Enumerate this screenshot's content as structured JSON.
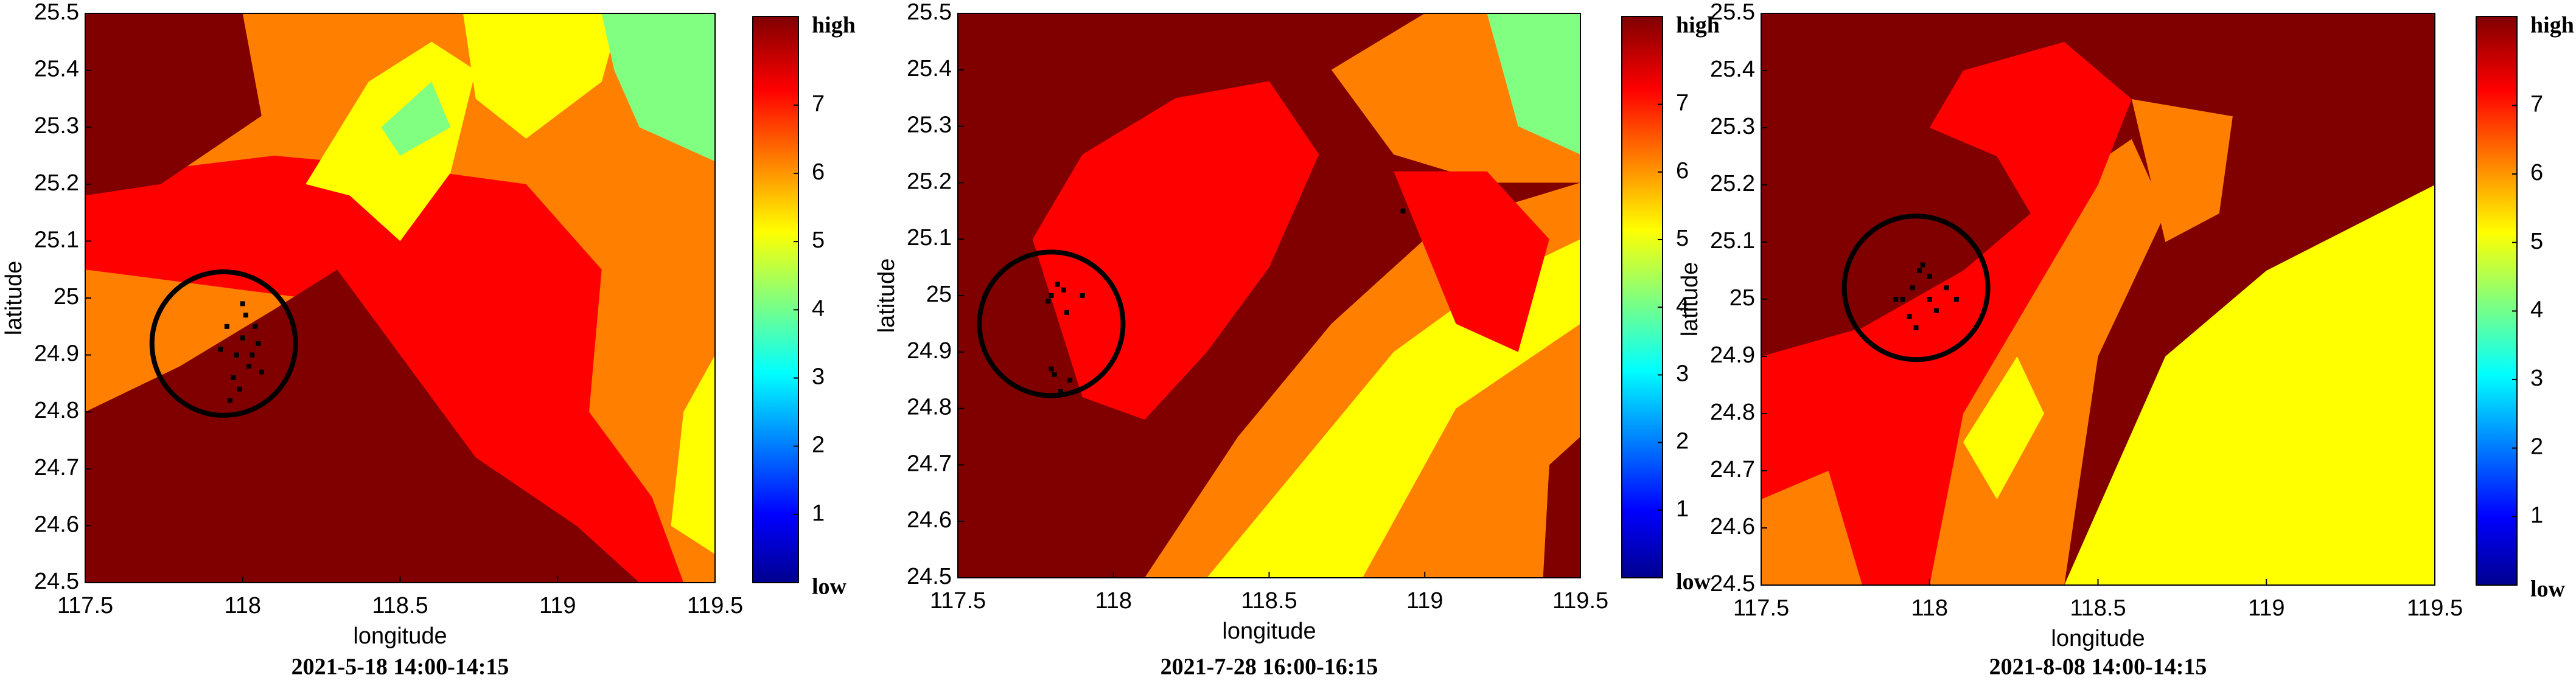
{
  "chart_data": [
    {
      "type": "heatmap",
      "caption": "2021-5-18 14:00-14:15",
      "xlabel": "longitude",
      "ylabel": "latitude",
      "xlim": [
        117.5,
        119.5
      ],
      "ylim": [
        24.5,
        25.5
      ],
      "xticks": [
        117.5,
        118,
        118.5,
        119,
        119.5
      ],
      "yticks": [
        24.5,
        24.6,
        24.7,
        24.8,
        24.9,
        25,
        25.1,
        25.2,
        25.3,
        25.4,
        25.5
      ],
      "colorbar": {
        "lim": [
          0,
          8.3
        ],
        "ticks": [
          1,
          2,
          3,
          4,
          5,
          6,
          7
        ],
        "high_label": "high",
        "low_label": "low"
      },
      "points": {
        "color": "#000000",
        "x": [
          117.95,
          117.98,
          118.0,
          118.02,
          118.05,
          117.97,
          118.01,
          118.04,
          117.99,
          118.03,
          118.06,
          117.93,
          118.0,
          117.96
        ],
        "y": [
          24.95,
          24.9,
          24.93,
          24.88,
          24.92,
          24.86,
          24.97,
          24.95,
          24.84,
          24.9,
          24.87,
          24.91,
          24.99,
          24.82
        ]
      }
    },
    {
      "type": "heatmap",
      "caption": "2021-7-28 16:00-16:15",
      "xlabel": "longitude",
      "ylabel": "latitude",
      "xlim": [
        117.5,
        119.5
      ],
      "ylim": [
        24.5,
        25.5
      ],
      "xticks": [
        117.5,
        118,
        118.5,
        119,
        119.5
      ],
      "yticks": [
        24.5,
        24.6,
        24.7,
        24.8,
        24.9,
        25,
        25.1,
        25.2,
        25.3,
        25.4,
        25.5
      ],
      "colorbar": {
        "lim": [
          0,
          8.3
        ],
        "ticks": [
          1,
          2,
          3,
          4,
          5,
          6,
          7
        ],
        "high_label": "high",
        "low_label": "low"
      },
      "points": {
        "color": "#000000",
        "x": [
          117.8,
          117.82,
          117.84,
          117.79,
          117.9,
          117.85,
          117.81,
          117.83,
          117.86,
          117.8,
          118.93
        ],
        "y": [
          25.0,
          25.02,
          25.01,
          24.99,
          25.0,
          24.97,
          24.86,
          24.83,
          24.85,
          24.87,
          25.15
        ]
      }
    },
    {
      "type": "heatmap",
      "caption": "2021-8-08 14:00-14:15",
      "xlabel": "longitude",
      "ylabel": "latitude",
      "xlim": [
        117.5,
        119.5
      ],
      "ylim": [
        24.5,
        25.5
      ],
      "xticks": [
        117.5,
        118,
        118.5,
        119,
        119.5
      ],
      "yticks": [
        24.5,
        24.6,
        24.7,
        24.8,
        24.9,
        25,
        25.1,
        25.2,
        25.3,
        25.4,
        25.5
      ],
      "colorbar": {
        "lim": [
          0,
          8.3
        ],
        "ticks": [
          1,
          2,
          3,
          4,
          5,
          6,
          7
        ],
        "high_label": "high",
        "low_label": "low"
      },
      "points": {
        "color": "#000000",
        "x": [
          117.92,
          117.95,
          117.97,
          118.0,
          118.02,
          117.94,
          117.98,
          118.05,
          118.08,
          117.9,
          117.96,
          118.0
        ],
        "y": [
          25.0,
          25.02,
          25.05,
          25.0,
          24.98,
          24.97,
          25.06,
          25.02,
          25.0,
          25.0,
          24.95,
          25.04
        ]
      }
    }
  ]
}
